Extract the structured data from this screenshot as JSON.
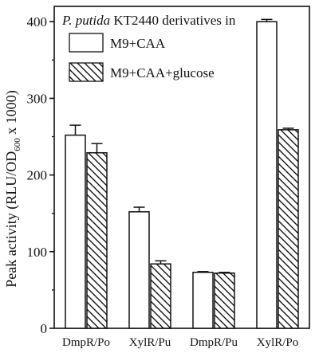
{
  "chart_data": {
    "type": "bar",
    "title": "",
    "legend_header": {
      "organism": "P. putida",
      "suffix": " KT2440 derivatives in"
    },
    "ylabel": {
      "pre": "Peak activity (RLU/OD",
      "sub": "600",
      "post": " x 1000)"
    },
    "xlabel": "",
    "ylim": [
      0,
      420
    ],
    "yticks": [
      0,
      100,
      200,
      300,
      400
    ],
    "categories": [
      "DmpR/Po",
      "XylR/Pu",
      "DmpR/Pu",
      "XylR/Po"
    ],
    "series": [
      {
        "name": "M9+CAA",
        "pattern": "open",
        "values": [
          252,
          152,
          73,
          400
        ],
        "errors": [
          13,
          6,
          1,
          3
        ]
      },
      {
        "name": "M9+CAA+glucose",
        "pattern": "hatched",
        "values": [
          229,
          84,
          72,
          259
        ],
        "errors": [
          12,
          4,
          1,
          2
        ]
      }
    ],
    "grid": false,
    "legend_position": "top"
  }
}
